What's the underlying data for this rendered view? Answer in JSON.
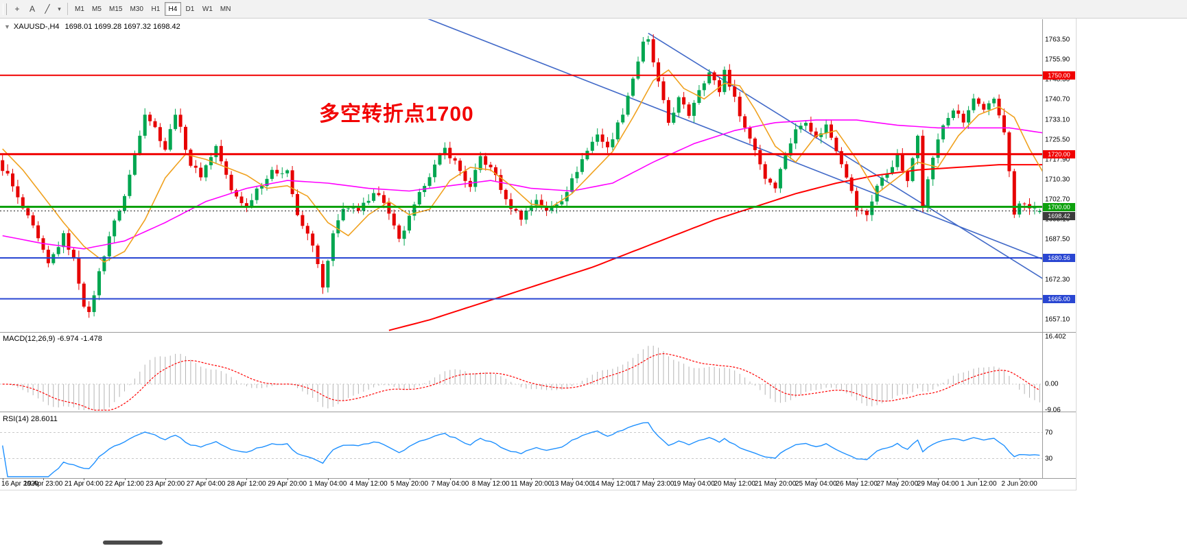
{
  "style": {
    "up": "#00a650",
    "down": "#e60000",
    "level_red": "#f00000",
    "level_green": "#0da10d",
    "level_blue": "#2946d2",
    "trend_blue": "#4169c8",
    "ma_fast": "#f0a11e",
    "ma_mid": "#ff00ff",
    "ma_slow": "#ff0000",
    "macd_hist": "#b4b4b4",
    "macd_signal": "#ff0000",
    "rsi_line": "#1e90ff",
    "rsi_level": "#c8c8c8",
    "badge_dark": "#3c3c3c",
    "annotation_red": "#f20000"
  },
  "toolbar": {
    "icons": [
      {
        "name": "crosshair-icon",
        "glyph": "+"
      },
      {
        "name": "text-tool-icon",
        "glyph": "A"
      },
      {
        "name": "trendline-icon",
        "glyph": "╱"
      },
      {
        "name": "chevron-down-icon",
        "glyph": "▾"
      }
    ],
    "timeframes": [
      {
        "label": "M1",
        "selected": false
      },
      {
        "label": "M5",
        "selected": false
      },
      {
        "label": "M15",
        "selected": false
      },
      {
        "label": "M30",
        "selected": false
      },
      {
        "label": "H1",
        "selected": false
      },
      {
        "label": "H4",
        "selected": true
      },
      {
        "label": "D1",
        "selected": false
      },
      {
        "label": "W1",
        "selected": false
      },
      {
        "label": "MN",
        "selected": false
      }
    ]
  },
  "header": {
    "collapse_arrow": "▼",
    "symbol": "XAUUSD-,H4",
    "ohlc_text": "1698.01 1699.28 1697.32 1698.42"
  },
  "annotation": {
    "text": "多空转折点1700"
  },
  "levels": [
    {
      "label": "1750.00",
      "price": 1750.0,
      "color_key": "level_red",
      "width": 2
    },
    {
      "label": "1720.00",
      "price": 1720.0,
      "color_key": "level_red",
      "width": 3
    },
    {
      "label": "1700.00",
      "price": 1700.0,
      "color_key": "level_green",
      "width": 3
    },
    {
      "label": "1680.56",
      "price": 1680.56,
      "color_key": "level_blue",
      "width": 2
    },
    {
      "label": "1665.00",
      "price": 1665.0,
      "color_key": "level_blue",
      "width": 2
    }
  ],
  "bid": {
    "label": "1698.42",
    "price": 1698.42
  },
  "price_scale": {
    "labels": [
      "1763.50",
      "1755.90",
      "1748.30",
      "1740.70",
      "1733.10",
      "1725.50",
      "1717.90",
      "1710.30",
      "1702.70",
      "1695.10",
      "1687.50",
      "1679.90",
      "1672.30",
      "1664.70",
      "1657.10"
    ]
  },
  "time_scale": {
    "labels": [
      "16 Apr 2020",
      "19 Apr 23:00",
      "21 Apr 04:00",
      "22 Apr 12:00",
      "23 Apr 20:00",
      "27 Apr 04:00",
      "28 Apr 12:00",
      "29 Apr 20:00",
      "1 May 04:00",
      "4 May 12:00",
      "5 May 20:00",
      "7 May 04:00",
      "8 May 12:00",
      "11 May 20:00",
      "13 May 04:00",
      "14 May 12:00",
      "17 May 23:00",
      "19 May 04:00",
      "20 May 12:00",
      "21 May 20:00",
      "25 May 04:00",
      "26 May 12:00",
      "27 May 20:00",
      "29 May 04:00",
      "1 Jun 12:00",
      "2 Jun 20:00"
    ]
  },
  "macd_panel": {
    "title": "MACD(12,26,9) -6.974 -1.478",
    "scale": [
      {
        "label": "16.402",
        "value": 16.402
      },
      {
        "label": "0.00",
        "value": 0
      },
      {
        "label": "-9.06",
        "value": -9.06
      }
    ]
  },
  "rsi_panel": {
    "title": "RSI(14) 28.6011",
    "value": 28.6011,
    "levels": [
      {
        "label": "70",
        "value": 70
      },
      {
        "label": "30",
        "value": 30
      }
    ]
  },
  "chart_data": {
    "type": "candlestick",
    "symbol": "XAUUSD",
    "timeframe": "H4",
    "bars": 205,
    "ylim": [
      1652.5,
      1771.5
    ],
    "price_step": 7.6,
    "last_ohlc": {
      "open": 1698.01,
      "high": 1699.28,
      "low": 1697.32,
      "close": 1698.42
    },
    "levels": [
      1750,
      1720,
      1700,
      1680.56,
      1665
    ],
    "indicator_params": {
      "macd": [
        12,
        26,
        9
      ],
      "rsi": 14
    },
    "price_path": [
      [
        0,
        1717
      ],
      [
        2,
        1712
      ],
      [
        4,
        1703
      ],
      [
        7,
        1692
      ],
      [
        10,
        1678
      ],
      [
        13,
        1689
      ],
      [
        15,
        1680
      ],
      [
        17,
        1663
      ],
      [
        18,
        1659
      ],
      [
        20,
        1675
      ],
      [
        22,
        1689
      ],
      [
        25,
        1704
      ],
      [
        28,
        1728
      ],
      [
        29,
        1736
      ],
      [
        31,
        1730
      ],
      [
        33,
        1722
      ],
      [
        35,
        1736
      ],
      [
        38,
        1716
      ],
      [
        40,
        1712
      ],
      [
        43,
        1723
      ],
      [
        46,
        1706
      ],
      [
        49,
        1700
      ],
      [
        51,
        1707
      ],
      [
        54,
        1713
      ],
      [
        57,
        1714
      ],
      [
        59,
        1696
      ],
      [
        62,
        1686
      ],
      [
        64,
        1669
      ],
      [
        66,
        1689
      ],
      [
        68,
        1700
      ],
      [
        71,
        1698
      ],
      [
        74,
        1706
      ],
      [
        76,
        1702
      ],
      [
        79,
        1687
      ],
      [
        82,
        1700
      ],
      [
        84,
        1709
      ],
      [
        88,
        1722
      ],
      [
        90,
        1717
      ],
      [
        93,
        1707
      ],
      [
        95,
        1719
      ],
      [
        98,
        1712
      ],
      [
        100,
        1702
      ],
      [
        103,
        1696
      ],
      [
        106,
        1703
      ],
      [
        108,
        1698
      ],
      [
        111,
        1703
      ],
      [
        113,
        1710
      ],
      [
        115,
        1718
      ],
      [
        118,
        1728
      ],
      [
        120,
        1722
      ],
      [
        123,
        1736
      ],
      [
        125,
        1749
      ],
      [
        127,
        1762
      ],
      [
        128,
        1763
      ],
      [
        130,
        1747
      ],
      [
        132,
        1732
      ],
      [
        134,
        1741
      ],
      [
        136,
        1735
      ],
      [
        138,
        1745
      ],
      [
        140,
        1751
      ],
      [
        142,
        1744
      ],
      [
        143,
        1752
      ],
      [
        145,
        1741
      ],
      [
        147,
        1730
      ],
      [
        149,
        1722
      ],
      [
        151,
        1711
      ],
      [
        153,
        1708
      ],
      [
        155,
        1720
      ],
      [
        157,
        1729
      ],
      [
        159,
        1733
      ],
      [
        161,
        1726
      ],
      [
        163,
        1731
      ],
      [
        165,
        1722
      ],
      [
        167,
        1712
      ],
      [
        169,
        1699
      ],
      [
        171,
        1697
      ],
      [
        173,
        1708
      ],
      [
        175,
        1713
      ],
      [
        177,
        1719
      ],
      [
        179,
        1709
      ],
      [
        181,
        1728
      ],
      [
        182,
        1701
      ],
      [
        184,
        1719
      ],
      [
        186,
        1731
      ],
      [
        188,
        1737
      ],
      [
        190,
        1732
      ],
      [
        192,
        1741
      ],
      [
        194,
        1736
      ],
      [
        196,
        1741
      ],
      [
        198,
        1729
      ],
      [
        199,
        1713
      ],
      [
        200,
        1697
      ],
      [
        201,
        1701
      ],
      [
        203,
        1700
      ],
      [
        205,
        1698.4
      ]
    ],
    "ma_fast_path": [
      [
        0,
        1722
      ],
      [
        4,
        1714
      ],
      [
        8,
        1704
      ],
      [
        12,
        1694
      ],
      [
        16,
        1685
      ],
      [
        20,
        1679
      ],
      [
        24,
        1683
      ],
      [
        28,
        1695
      ],
      [
        32,
        1711
      ],
      [
        36,
        1720
      ],
      [
        40,
        1718
      ],
      [
        44,
        1715
      ],
      [
        48,
        1712
      ],
      [
        52,
        1707
      ],
      [
        56,
        1708
      ],
      [
        60,
        1704
      ],
      [
        64,
        1694
      ],
      [
        68,
        1689
      ],
      [
        72,
        1697
      ],
      [
        76,
        1702
      ],
      [
        80,
        1697
      ],
      [
        84,
        1699
      ],
      [
        88,
        1710
      ],
      [
        92,
        1715
      ],
      [
        96,
        1714
      ],
      [
        100,
        1708
      ],
      [
        104,
        1701
      ],
      [
        108,
        1700
      ],
      [
        112,
        1705
      ],
      [
        116,
        1713
      ],
      [
        120,
        1721
      ],
      [
        124,
        1734
      ],
      [
        128,
        1748
      ],
      [
        131,
        1752
      ],
      [
        134,
        1745
      ],
      [
        138,
        1741
      ],
      [
        142,
        1747
      ],
      [
        145,
        1746
      ],
      [
        148,
        1737
      ],
      [
        152,
        1723
      ],
      [
        156,
        1717
      ],
      [
        160,
        1727
      ],
      [
        164,
        1729
      ],
      [
        168,
        1718
      ],
      [
        172,
        1705
      ],
      [
        176,
        1711
      ],
      [
        180,
        1717
      ],
      [
        184,
        1715
      ],
      [
        188,
        1727
      ],
      [
        192,
        1735
      ],
      [
        196,
        1738
      ],
      [
        199,
        1734
      ],
      [
        202,
        1722
      ],
      [
        205,
        1712
      ]
    ],
    "ma_mid_path": [
      [
        0,
        1689
      ],
      [
        8,
        1686
      ],
      [
        16,
        1684
      ],
      [
        24,
        1687
      ],
      [
        32,
        1694
      ],
      [
        40,
        1702
      ],
      [
        48,
        1707
      ],
      [
        56,
        1710
      ],
      [
        64,
        1709
      ],
      [
        72,
        1707
      ],
      [
        80,
        1706
      ],
      [
        88,
        1708
      ],
      [
        96,
        1710
      ],
      [
        104,
        1707
      ],
      [
        112,
        1706
      ],
      [
        120,
        1709
      ],
      [
        128,
        1717
      ],
      [
        136,
        1724
      ],
      [
        144,
        1729
      ],
      [
        152,
        1732
      ],
      [
        160,
        1733
      ],
      [
        168,
        1733
      ],
      [
        176,
        1731
      ],
      [
        184,
        1730
      ],
      [
        192,
        1730
      ],
      [
        198,
        1730
      ],
      [
        205,
        1728
      ]
    ],
    "ma_slow_path": [
      [
        76,
        1653
      ],
      [
        84,
        1657
      ],
      [
        92,
        1662
      ],
      [
        100,
        1667
      ],
      [
        108,
        1672
      ],
      [
        116,
        1677
      ],
      [
        124,
        1683
      ],
      [
        132,
        1689
      ],
      [
        140,
        1695
      ],
      [
        148,
        1700
      ],
      [
        156,
        1705
      ],
      [
        164,
        1709
      ],
      [
        172,
        1712
      ],
      [
        180,
        1714
      ],
      [
        188,
        1715
      ],
      [
        196,
        1716
      ],
      [
        205,
        1716
      ]
    ],
    "trendlines": [
      {
        "start": {
          "bar": 83,
          "price": 1772
        },
        "end": {
          "bar": 206,
          "price": 1679
        }
      },
      {
        "start": {
          "bar": 127,
          "price": 1766
        },
        "end": {
          "bar": 206,
          "price": 1671
        }
      }
    ]
  }
}
